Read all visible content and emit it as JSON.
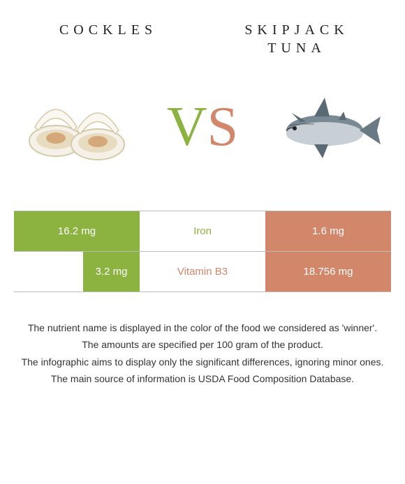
{
  "header": {
    "left": "COCKLES",
    "right_line1": "SKIPJACK",
    "right_line2": "TUNA"
  },
  "vs": {
    "v": "V",
    "s": "S"
  },
  "colors": {
    "left": "#8cb23f",
    "right": "#d2866a"
  },
  "rows": [
    {
      "nutrient": "Iron",
      "winner": "left",
      "left_value": "16.2 mg",
      "right_value": "1.6 mg",
      "left_bar_pct": 100,
      "right_bar_pct": 100
    },
    {
      "nutrient": "Vitamin B3",
      "winner": "right",
      "left_value": "3.2 mg",
      "right_value": "18.756 mg",
      "left_bar_pct": 45,
      "right_bar_pct": 100
    }
  ],
  "footer": [
    "The nutrient name is displayed in the color of the food we considered as 'winner'.",
    "The amounts are specified per 100 gram of the product.",
    "The infographic aims to display only the significant differences, ignoring minor ones.",
    "The main source of information is USDA Food Composition Database."
  ]
}
